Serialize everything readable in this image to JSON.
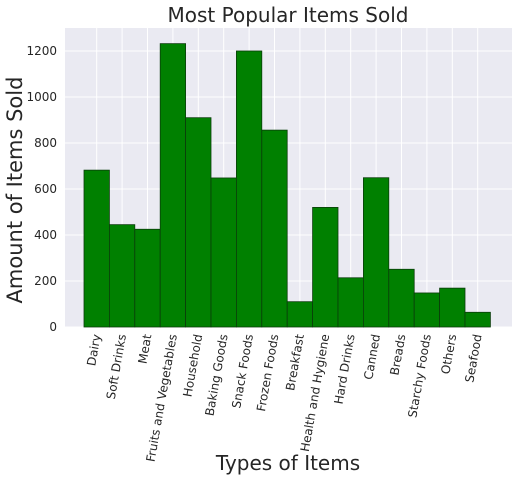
{
  "chart_data": {
    "type": "bar",
    "title": "Most Popular Items Sold",
    "xlabel": "Types of Items",
    "ylabel": "Amount of Items Sold",
    "categories": [
      "Dairy",
      "Soft Drinks",
      "Meat",
      "Fruits and Vegetables",
      "Household",
      "Baking Goods",
      "Snack Foods",
      "Frozen Foods",
      "Breakfast",
      "Health and Hygiene",
      "Hard Drinks",
      "Canned",
      "Breads",
      "Starchy Foods",
      "Others",
      "Seafood"
    ],
    "values": [
      682,
      445,
      425,
      1232,
      910,
      648,
      1200,
      856,
      110,
      520,
      214,
      649,
      251,
      148,
      169,
      64
    ],
    "ylim": [
      0,
      1300
    ],
    "yticks": [
      0,
      200,
      400,
      600,
      800,
      1000,
      1200
    ],
    "grid": true,
    "bar_color": "#008000",
    "bar_edge_color": "#0a3d0a",
    "plot_background": "#eaeaf2",
    "grid_color": "#ffffff",
    "text_color": "#262626"
  }
}
